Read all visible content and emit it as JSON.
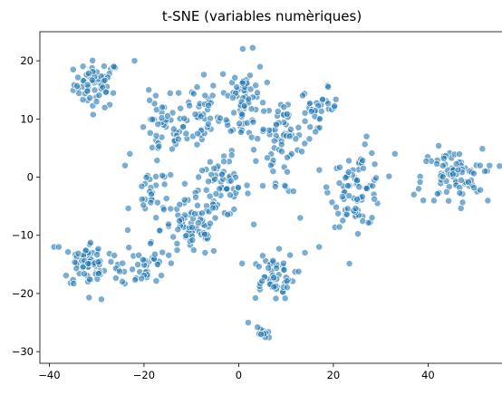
{
  "chart_data": {
    "type": "scatter",
    "title": "t-SNE (variables numèriques)",
    "xlabel": "",
    "ylabel": "",
    "xlim": [
      -42,
      56
    ],
    "ylim": [
      -32,
      25
    ],
    "xticks": [
      -40,
      -20,
      0,
      20,
      40
    ],
    "yticks": [
      -30,
      -20,
      -10,
      0,
      10,
      20
    ],
    "grid": false,
    "point_color": "#1f77b4",
    "clusters": [
      {
        "center": [
          -30,
          16
        ],
        "spread": [
          3,
          2.5
        ],
        "n": 60
      },
      {
        "center": [
          -16,
          8
        ],
        "spread": [
          3,
          3
        ],
        "n": 40
      },
      {
        "center": [
          -9,
          11
        ],
        "spread": [
          3,
          4
        ],
        "n": 45
      },
      {
        "center": [
          1,
          13
        ],
        "spread": [
          3,
          5
        ],
        "n": 75
      },
      {
        "center": [
          10,
          9
        ],
        "spread": [
          3,
          2.5
        ],
        "n": 40
      },
      {
        "center": [
          17,
          12
        ],
        "spread": [
          2.5,
          2
        ],
        "n": 30
      },
      {
        "center": [
          -4,
          -2
        ],
        "spread": [
          4,
          3
        ],
        "n": 60
      },
      {
        "center": [
          -10,
          -9
        ],
        "spread": [
          4,
          3
        ],
        "n": 70
      },
      {
        "center": [
          -18,
          -3
        ],
        "spread": [
          3,
          3
        ],
        "n": 30
      },
      {
        "center": [
          25,
          -2
        ],
        "spread": [
          3.5,
          4
        ],
        "n": 80
      },
      {
        "center": [
          45,
          0
        ],
        "spread": [
          4,
          3
        ],
        "n": 75
      },
      {
        "center": [
          -31,
          -15
        ],
        "spread": [
          4,
          2.5
        ],
        "n": 70
      },
      {
        "center": [
          -20,
          -15
        ],
        "spread": [
          3,
          2.5
        ],
        "n": 40
      },
      {
        "center": [
          7,
          -17
        ],
        "spread": [
          3,
          2.5
        ],
        "n": 55
      },
      {
        "center": [
          5,
          -27
        ],
        "spread": [
          1,
          1
        ],
        "n": 10
      },
      {
        "center": [
          8,
          2
        ],
        "spread": [
          3,
          3
        ],
        "n": 25
      }
    ],
    "points": [
      [
        -39,
        -12
      ],
      [
        -38,
        -12
      ],
      [
        -29,
        -21
      ],
      [
        2,
        -25
      ],
      [
        -23,
        4
      ],
      [
        -24,
        2
      ],
      [
        33,
        4
      ],
      [
        37,
        -3
      ],
      [
        38,
        -2
      ],
      [
        39,
        -4
      ],
      [
        53,
        2
      ],
      [
        51,
        2
      ],
      [
        52,
        1
      ],
      [
        27,
        7
      ],
      [
        -22,
        20
      ],
      [
        -19,
        15
      ],
      [
        17,
        -12
      ],
      [
        14,
        -13
      ],
      [
        13,
        -7
      ]
    ]
  }
}
